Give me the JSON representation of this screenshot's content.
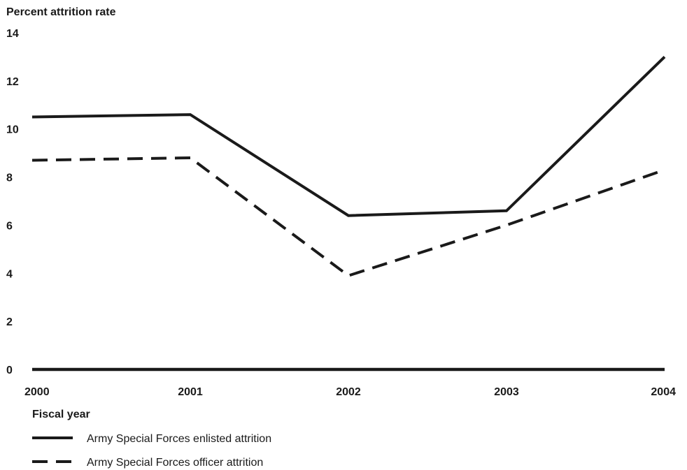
{
  "chart_data": {
    "type": "line",
    "ylabel": "Percent attrition rate",
    "xlabel": "Fiscal year",
    "x": [
      "2000",
      "2001",
      "2002",
      "2003",
      "2004"
    ],
    "yticks": [
      "0",
      "2",
      "4",
      "6",
      "8",
      "10",
      "12",
      "14"
    ],
    "ylim": [
      0,
      14
    ],
    "grid": false,
    "legend_position": "bottom-left",
    "series": [
      {
        "name": "Army Special Forces enlisted attrition",
        "style": "solid",
        "color": "#1a1a1a",
        "values": [
          10.5,
          10.6,
          6.4,
          6.6,
          13.0
        ]
      },
      {
        "name": "Army Special Forces officer attrition",
        "style": "dashed",
        "color": "#1a1a1a",
        "values": [
          8.7,
          8.8,
          3.9,
          6.0,
          8.3
        ]
      }
    ]
  }
}
